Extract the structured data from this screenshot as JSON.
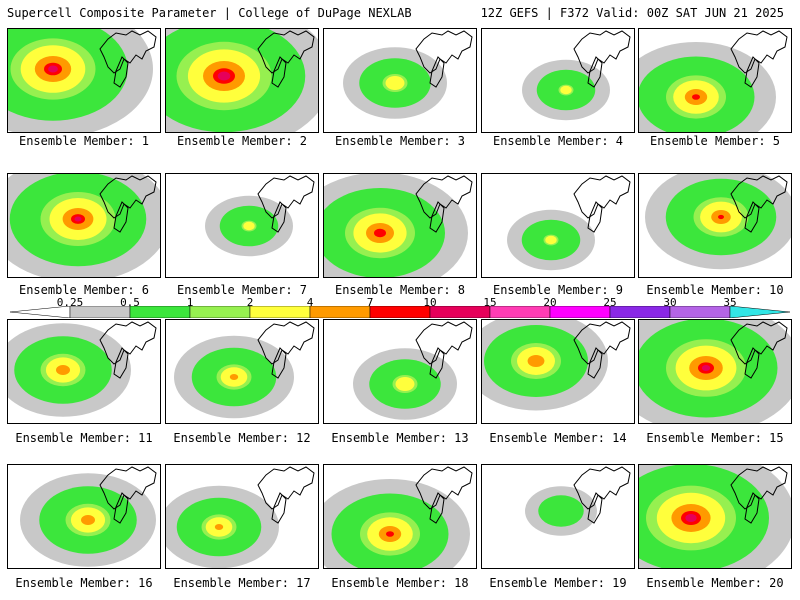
{
  "header": {
    "left": "Supercell Composite Parameter | College of DuPage NEXLAB",
    "right": "12Z GEFS | F372 Valid: 00Z SAT JUN 21 2025"
  },
  "legend": {
    "labels": [
      "0.25",
      "0.5",
      "1",
      "2",
      "4",
      "7",
      "10",
      "15",
      "20",
      "25",
      "30",
      "35"
    ],
    "colors": [
      "#ffffff",
      "#c8c8c8",
      "#3ce63c",
      "#96f050",
      "#ffff3c",
      "#ff9a00",
      "#ff0000",
      "#e6005a",
      "#ff3cb4",
      "#ff00ff",
      "#8a28e6",
      "#b464e6",
      "#32e6e6"
    ]
  },
  "members": [
    {
      "label": "Ensemble Member: 1",
      "intensity": 0.85
    },
    {
      "label": "Ensemble Member: 2",
      "intensity": 0.95
    },
    {
      "label": "Ensemble Member: 3",
      "intensity": 0.25
    },
    {
      "label": "Ensemble Member: 4",
      "intensity": 0.15
    },
    {
      "label": "Ensemble Member: 5",
      "intensity": 0.6
    },
    {
      "label": "Ensemble Member: 6",
      "intensity": 0.75
    },
    {
      "label": "Ensemble Member: 7",
      "intensity": 0.15
    },
    {
      "label": "Ensemble Member: 8",
      "intensity": 0.7
    },
    {
      "label": "Ensemble Member: 9",
      "intensity": 0.15
    },
    {
      "label": "Ensemble Member: 10",
      "intensity": 0.55
    },
    {
      "label": "Ensemble Member: 11",
      "intensity": 0.45
    },
    {
      "label": "Ensemble Member: 12",
      "intensity": 0.35
    },
    {
      "label": "Ensemble Member: 13",
      "intensity": 0.25
    },
    {
      "label": "Ensemble Member: 14",
      "intensity": 0.5
    },
    {
      "label": "Ensemble Member: 15",
      "intensity": 0.8
    },
    {
      "label": "Ensemble Member: 16",
      "intensity": 0.45
    },
    {
      "label": "Ensemble Member: 17",
      "intensity": 0.35
    },
    {
      "label": "Ensemble Member: 18",
      "intensity": 0.6
    },
    {
      "label": "Ensemble Member: 19",
      "intensity": 0.05
    },
    {
      "label": "Ensemble Member: 20",
      "intensity": 0.9
    }
  ]
}
